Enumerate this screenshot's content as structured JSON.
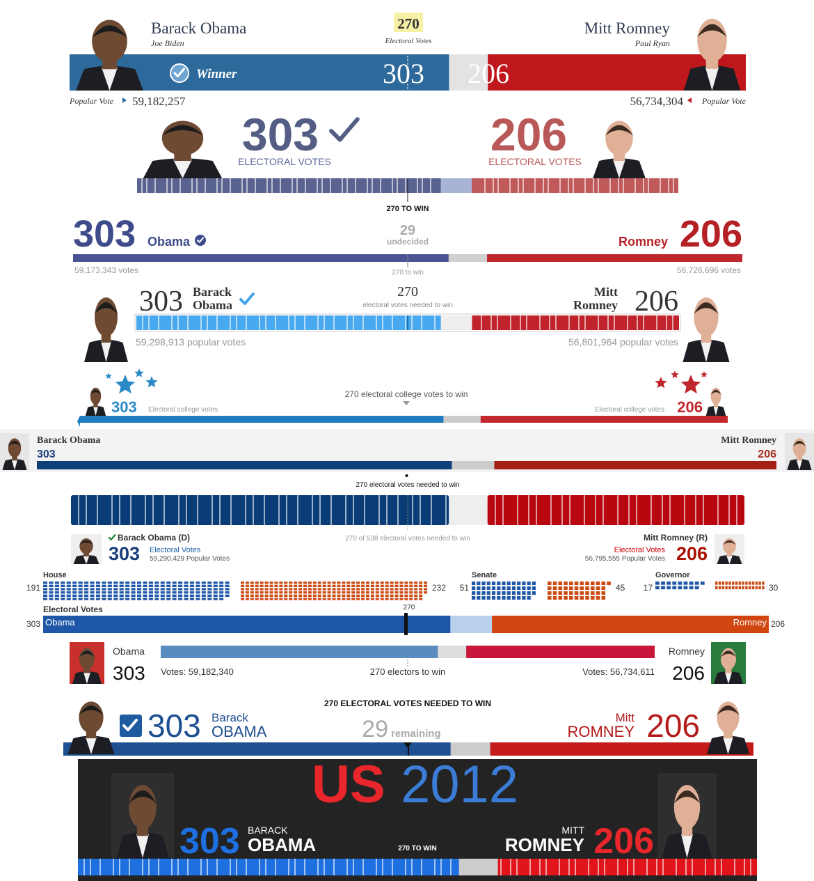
{
  "panels": [
    {
      "candidates": [
        {
          "name": "Barack Obama",
          "mate": "Joe Biden",
          "electoral": 303,
          "popular_label": "Popular Vote",
          "popular": "59,182,257"
        },
        {
          "name": "Mitt Romney",
          "mate": "Paul Ryan",
          "electoral": 206,
          "popular_label": "Popular Vote",
          "popular": "56,734,304"
        }
      ],
      "winner": "Winner",
      "threshold": 270,
      "threshold_label": "Electoral Votes"
    },
    {
      "candidates": [
        {
          "electoral": 303,
          "label": "ELECTORAL VOTES"
        },
        {
          "electoral": 206,
          "label": "ELECTORAL VOTES"
        }
      ],
      "threshold": {
        "value": 270,
        "label": "270 TO WIN"
      }
    },
    {
      "candidates": [
        {
          "electoral": 303,
          "name": "Obama",
          "popular": "59,173,343 votes"
        },
        {
          "electoral": 206,
          "name": "Romney",
          "popular": "56,726,696 votes"
        }
      ],
      "undecided": 29,
      "undecided_label": "undecided",
      "threshold": {
        "value": 270,
        "label": "270 to win"
      }
    },
    {
      "candidates": [
        {
          "electoral": 303,
          "first": "Barack",
          "last": "Obama",
          "popular": "59,298,913 popular votes"
        },
        {
          "electoral": 206,
          "first": "Mitt",
          "last": "Romney",
          "popular": "56,801,964 popular votes"
        }
      ],
      "threshold": 270,
      "threshold_label": "electoral votes needed to win"
    },
    {
      "candidates": [
        {
          "electoral": 303,
          "label": "Electoral college votes"
        },
        {
          "electoral": 206,
          "label": "Electoral college votes"
        }
      ],
      "threshold": {
        "value": 270,
        "label": "270 electoral college votes to win"
      }
    },
    {
      "candidates": [
        {
          "name": "Barack Obama",
          "electoral": 303
        },
        {
          "name": "Mitt Romney",
          "electoral": 206
        }
      ],
      "threshold": {
        "value": 270,
        "label": "270 electoral votes needed to win"
      }
    },
    {
      "candidates": [
        {
          "name": "Barack Obama (D)",
          "electoral": 303,
          "label": "Electoral Votes",
          "popular": "59,290,429 Popular Votes"
        },
        {
          "name": "Mitt Romney (R)",
          "electoral": 206,
          "label": "Electoral Votes",
          "popular": "56,795,555 Popular Votes"
        }
      ],
      "threshold": {
        "value": 270,
        "label": "270 of 538 electoral votes needed to win"
      }
    },
    {
      "races": [
        {
          "name": "House",
          "values": [
            191,
            232
          ]
        },
        {
          "name": "Senate",
          "values": [
            51,
            45
          ]
        },
        {
          "name": "Governor",
          "values": [
            17,
            30
          ]
        }
      ],
      "electoral_label": "Electoral Votes",
      "threshold": 270,
      "candidates": [
        {
          "name": "Obama",
          "electoral": 303
        },
        {
          "name": "Romney",
          "electoral": 206
        }
      ]
    },
    {
      "candidates": [
        {
          "name": "Obama",
          "electoral": 303,
          "popular": "Votes: 59,182,340"
        },
        {
          "name": "Romney",
          "electoral": 206,
          "popular": "Votes: 56,734,611"
        }
      ],
      "threshold": {
        "value": 270,
        "label": "270 electors to win"
      }
    },
    {
      "threshold": {
        "value": 270,
        "label": "270 ELECTORAL VOTES NEEDED TO WIN"
      },
      "candidates": [
        {
          "electoral": 303,
          "first": "Barack",
          "last": "OBAMA"
        },
        {
          "electoral": 206,
          "first": "Mitt",
          "last": "ROMNEY"
        }
      ],
      "remaining": 29,
      "remaining_label": "remaining"
    },
    {
      "title": [
        "US",
        "2012"
      ],
      "candidates": [
        {
          "electoral": 303,
          "first": "BARACK",
          "last": "OBAMA"
        },
        {
          "electoral": 206,
          "first": "MITT",
          "last": "ROMNEY"
        }
      ],
      "threshold": {
        "value": 270,
        "label": "270 TO WIN"
      }
    }
  ]
}
